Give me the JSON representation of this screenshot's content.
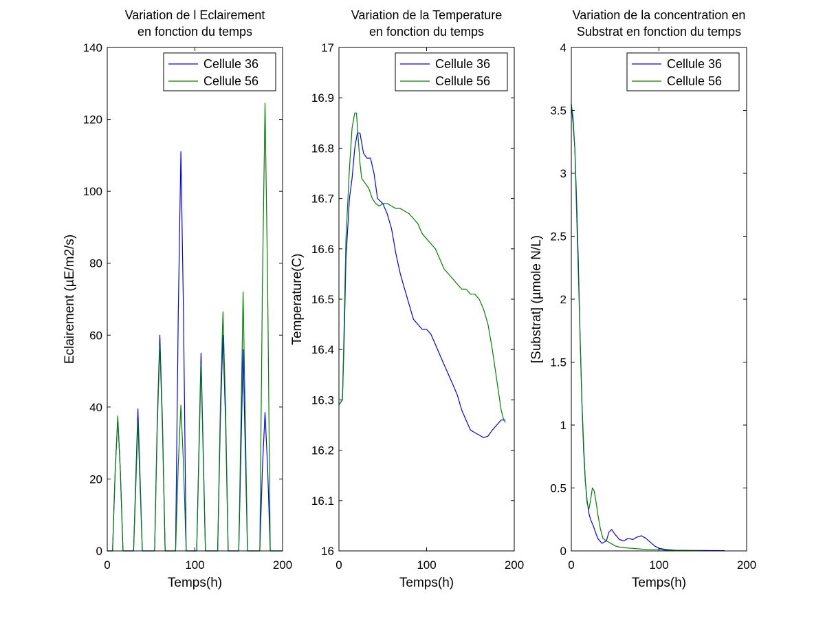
{
  "colors": {
    "cellule36": "#0000ff",
    "cellule56": "#008000",
    "axes": "#000000",
    "background": "#ffffff"
  },
  "chart_data": [
    {
      "type": "line",
      "title": [
        "Variation de l Eclairement",
        "en fonction du temps"
      ],
      "xlabel": "Temps(h)",
      "ylabel": "Eclairement (µE/m2/s)",
      "xlim": [
        0,
        200
      ],
      "ylim": [
        0,
        140
      ],
      "xticks": [
        0,
        100,
        200
      ],
      "yticks": [
        0,
        20,
        40,
        60,
        80,
        100,
        120,
        140
      ],
      "grid": false,
      "legend": "top-right",
      "series": [
        {
          "name": "Cellule 36",
          "color_key": "cellule36",
          "x": [
            0,
            6,
            9,
            12,
            15,
            18,
            30,
            33,
            35,
            37,
            40,
            54,
            57,
            60,
            63,
            66,
            78,
            81,
            84,
            87,
            90,
            102,
            105,
            107,
            109,
            112,
            126,
            129,
            132,
            135,
            138,
            150,
            153,
            155,
            157,
            160,
            174,
            177,
            180,
            183,
            186,
            200
          ],
          "y": [
            0,
            0,
            22,
            37,
            22,
            0,
            0,
            24,
            39.5,
            24,
            0,
            0,
            36,
            60,
            36,
            0,
            0,
            66,
            111,
            66,
            0,
            0,
            33,
            55,
            33,
            0,
            0,
            36,
            60,
            36,
            0,
            0,
            33,
            56,
            33,
            0,
            0,
            23,
            38.5,
            23,
            0,
            0
          ]
        },
        {
          "name": "Cellule 56",
          "color_key": "cellule56",
          "x": [
            0,
            6,
            9,
            12,
            15,
            18,
            30,
            33,
            35,
            37,
            40,
            54,
            57,
            60,
            63,
            66,
            78,
            81,
            84,
            87,
            90,
            102,
            105,
            107,
            109,
            112,
            126,
            129,
            132,
            135,
            138,
            150,
            153,
            155,
            157,
            160,
            174,
            177,
            180,
            183,
            186,
            200
          ],
          "y": [
            0,
            0,
            22,
            37.5,
            22,
            0,
            0,
            21,
            36,
            21,
            0,
            0,
            34,
            57,
            34,
            0,
            0,
            24,
            40.5,
            24,
            0,
            0,
            31,
            52,
            31,
            0,
            0,
            40,
            66.5,
            40,
            0,
            0,
            43,
            72,
            43,
            0,
            0,
            74,
            124.5,
            74,
            0,
            0
          ]
        }
      ]
    },
    {
      "type": "line",
      "title": [
        "Variation de la Temperature",
        "en fonction du temps"
      ],
      "xlabel": "Temps(h)",
      "ylabel": "Temperature(C)",
      "xlim": [
        0,
        200
      ],
      "ylim": [
        16,
        17
      ],
      "xticks": [
        0,
        100,
        200
      ],
      "yticks": [
        16,
        16.1,
        16.2,
        16.3,
        16.4,
        16.5,
        16.6,
        16.7,
        16.8,
        16.9,
        17
      ],
      "grid": false,
      "legend": "top-right",
      "series": [
        {
          "name": "Cellule 36",
          "color_key": "cellule36",
          "x": [
            0,
            4,
            6,
            8,
            12,
            15,
            18,
            21,
            24,
            28,
            32,
            36,
            40,
            44,
            50,
            55,
            60,
            65,
            70,
            75,
            80,
            85,
            90,
            95,
            100,
            105,
            110,
            115,
            120,
            125,
            130,
            135,
            140,
            145,
            150,
            155,
            160,
            165,
            170,
            175,
            180,
            185,
            190
          ],
          "y": [
            16.29,
            16.3,
            16.42,
            16.58,
            16.7,
            16.74,
            16.8,
            16.83,
            16.83,
            16.79,
            16.78,
            16.78,
            16.75,
            16.7,
            16.69,
            16.67,
            16.64,
            16.59,
            16.55,
            16.52,
            16.49,
            16.46,
            16.45,
            16.44,
            16.44,
            16.43,
            16.41,
            16.39,
            16.37,
            16.35,
            16.33,
            16.31,
            16.28,
            16.26,
            16.24,
            16.235,
            16.23,
            16.225,
            16.228,
            16.24,
            16.25,
            16.26,
            16.26
          ]
        },
        {
          "name": "Cellule 56",
          "color_key": "cellule56",
          "x": [
            0,
            4,
            6,
            8,
            12,
            15,
            18,
            20,
            22,
            24,
            26,
            30,
            34,
            38,
            42,
            46,
            50,
            55,
            60,
            65,
            70,
            75,
            80,
            85,
            90,
            95,
            100,
            105,
            110,
            115,
            120,
            125,
            130,
            135,
            140,
            145,
            150,
            155,
            160,
            165,
            170,
            175,
            180,
            185,
            188,
            190
          ],
          "y": [
            16.29,
            16.3,
            16.45,
            16.62,
            16.76,
            16.84,
            16.87,
            16.87,
            16.82,
            16.77,
            16.74,
            16.73,
            16.72,
            16.7,
            16.69,
            16.685,
            16.69,
            16.69,
            16.685,
            16.68,
            16.68,
            16.675,
            16.67,
            16.66,
            16.65,
            16.63,
            16.62,
            16.61,
            16.6,
            16.58,
            16.56,
            16.55,
            16.54,
            16.53,
            16.52,
            16.52,
            16.51,
            16.51,
            16.5,
            16.48,
            16.45,
            16.4,
            16.34,
            16.28,
            16.26,
            16.255
          ]
        }
      ]
    },
    {
      "type": "line",
      "title": [
        "Variation de la concentration en",
        "Substrat en fonction du temps"
      ],
      "xlabel": "Temps(h)",
      "ylabel": "[Substrat] (µmole N/L)",
      "xlim": [
        0,
        200
      ],
      "ylim": [
        0,
        4
      ],
      "xticks": [
        0,
        100,
        200
      ],
      "yticks": [
        0,
        0.5,
        1,
        1.5,
        2,
        2.5,
        3,
        3.5,
        4
      ],
      "grid": false,
      "legend": "top-right",
      "series": [
        {
          "name": "Cellule 36",
          "color_key": "cellule36",
          "x": [
            0,
            2,
            4,
            6,
            8,
            10,
            12,
            14,
            16,
            18,
            20,
            22,
            25,
            30,
            35,
            40,
            43,
            46,
            50,
            55,
            60,
            65,
            70,
            75,
            80,
            85,
            90,
            95,
            100,
            110,
            120,
            140,
            160,
            175
          ],
          "y": [
            3.55,
            3.4,
            3.2,
            2.8,
            2.3,
            1.7,
            1.2,
            0.8,
            0.55,
            0.4,
            0.3,
            0.25,
            0.2,
            0.1,
            0.06,
            0.08,
            0.15,
            0.17,
            0.13,
            0.09,
            0.08,
            0.1,
            0.09,
            0.11,
            0.12,
            0.1,
            0.07,
            0.04,
            0.02,
            0.01,
            0.005,
            0.004,
            0.003,
            0.002
          ]
        },
        {
          "name": "Cellule 56",
          "color_key": "cellule56",
          "x": [
            0,
            2,
            4,
            6,
            8,
            10,
            12,
            14,
            16,
            18,
            20,
            22,
            24,
            26,
            28,
            30,
            33,
            36,
            40,
            45,
            50,
            55,
            60,
            70,
            80,
            90,
            100,
            110,
            120,
            130,
            140,
            150
          ],
          "y": [
            3.55,
            3.45,
            3.2,
            2.7,
            2.2,
            1.7,
            1.2,
            0.85,
            0.55,
            0.38,
            0.33,
            0.4,
            0.5,
            0.48,
            0.4,
            0.3,
            0.18,
            0.1,
            0.08,
            0.06,
            0.04,
            0.03,
            0.025,
            0.02,
            0.015,
            0.01,
            0.01,
            0.005,
            0.005,
            0.003,
            0.002,
            0.001
          ]
        }
      ]
    }
  ]
}
